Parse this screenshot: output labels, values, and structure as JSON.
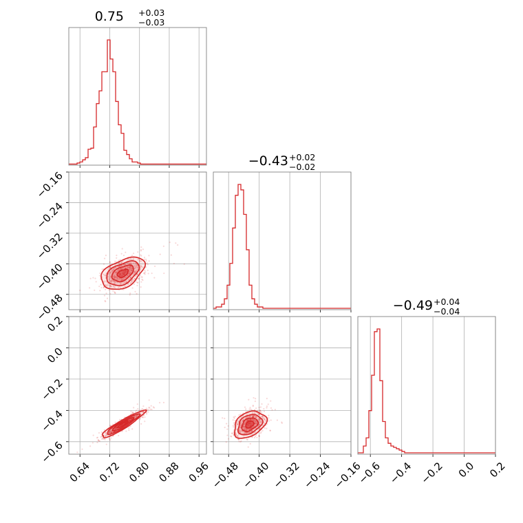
{
  "chart_data": {
    "type": "corner",
    "color": "#d62728",
    "parameters": [
      {
        "title_value": "0.75",
        "title_plus": "+0.03",
        "title_minus": "−0.03",
        "range": [
          0.61,
          0.98
        ],
        "ticks": [
          "0.64",
          "0.72",
          "0.80",
          "0.88",
          "0.96"
        ],
        "tick_values": [
          0.64,
          0.72,
          0.8,
          0.88,
          0.96
        ]
      },
      {
        "title_value": "−0.43",
        "title_plus": "+0.02",
        "title_minus": "−0.02",
        "range": [
          -0.52,
          -0.16
        ],
        "ticks": [
          "−0.48",
          "−0.40",
          "−0.32",
          "−0.24",
          "−0.16"
        ],
        "tick_values": [
          -0.48,
          -0.4,
          -0.32,
          -0.24,
          -0.16
        ],
        "y_ticks": [
          "−0.16",
          "−0.24",
          "−0.32",
          "−0.40",
          "−0.48"
        ],
        "y_tick_values": [
          -0.16,
          -0.24,
          -0.32,
          -0.4,
          -0.48
        ]
      },
      {
        "title_value": "−0.49",
        "title_plus": "+0.04",
        "title_minus": "−0.04",
        "range": [
          -0.68,
          0.2
        ],
        "ticks": [
          "−0.6",
          "−0.4",
          "−0.2",
          "0.0",
          "0.2"
        ],
        "tick_values": [
          -0.6,
          -0.4,
          -0.2,
          0.0,
          0.2
        ],
        "y_ticks": [
          "0.2",
          "0.0",
          "−0.2",
          "−0.4",
          "−0.6"
        ],
        "y_tick_values": [
          0.2,
          0.0,
          -0.2,
          -0.4,
          -0.6
        ]
      }
    ],
    "histograms": [
      {
        "edges_start": 0.61,
        "bin_width": 0.0074,
        "counts": [
          1,
          1,
          1,
          2,
          3,
          5,
          7,
          15,
          16,
          36,
          58,
          70,
          88,
          88,
          118,
          100,
          88,
          60,
          38,
          30,
          14,
          10,
          6,
          3,
          3,
          2,
          1,
          1,
          1,
          1,
          1,
          1,
          1,
          1,
          1,
          1,
          1,
          1,
          1,
          1,
          1,
          1,
          1,
          1,
          1,
          1,
          1,
          1,
          1,
          1
        ]
      },
      {
        "edges_start": -0.52,
        "bin_width": 0.0072,
        "counts": [
          1,
          2,
          2,
          4,
          8,
          18,
          34,
          60,
          84,
          92,
          88,
          70,
          44,
          18,
          8,
          4,
          2,
          2,
          1,
          1,
          1,
          1,
          1,
          1,
          1,
          1,
          1,
          1,
          1,
          1,
          1,
          1,
          1,
          1,
          1,
          1,
          1,
          1,
          1,
          1,
          1,
          1,
          1,
          1,
          1,
          1,
          1,
          1,
          1,
          1
        ]
      },
      {
        "edges_start": -0.68,
        "bin_width": 0.0176,
        "counts": [
          1,
          1,
          6,
          12,
          32,
          58,
          90,
          92,
          54,
          24,
          12,
          8,
          6,
          5,
          4,
          3,
          2,
          1,
          1,
          1,
          1,
          1,
          1,
          1,
          1,
          1,
          1,
          1,
          1,
          1,
          1,
          1,
          1,
          1,
          1,
          1,
          1,
          1,
          1,
          1,
          1,
          1,
          1,
          1,
          1,
          1,
          1,
          1,
          1,
          1
        ]
      }
    ],
    "pairs": [
      {
        "x_param": 0,
        "y_param": 1,
        "center": [
          0.755,
          -0.425
        ],
        "sigma": [
          0.029,
          0.021
        ],
        "correlation": 0.45,
        "contour_levels": [
          "0.5σ",
          "1σ",
          "1.5σ",
          "2σ"
        ]
      },
      {
        "x_param": 0,
        "y_param": 2,
        "center": [
          0.755,
          -0.49
        ],
        "sigma": [
          0.029,
          0.043
        ],
        "correlation": 0.93,
        "contour_levels": [
          "0.5σ",
          "1σ",
          "1.5σ",
          "2σ"
        ]
      },
      {
        "x_param": 1,
        "y_param": 2,
        "center": [
          -0.425,
          -0.49
        ],
        "sigma": [
          0.021,
          0.043
        ],
        "correlation": 0.35,
        "contour_levels": [
          "0.5σ",
          "1σ",
          "1.5σ",
          "2σ"
        ]
      }
    ],
    "grid": true
  }
}
